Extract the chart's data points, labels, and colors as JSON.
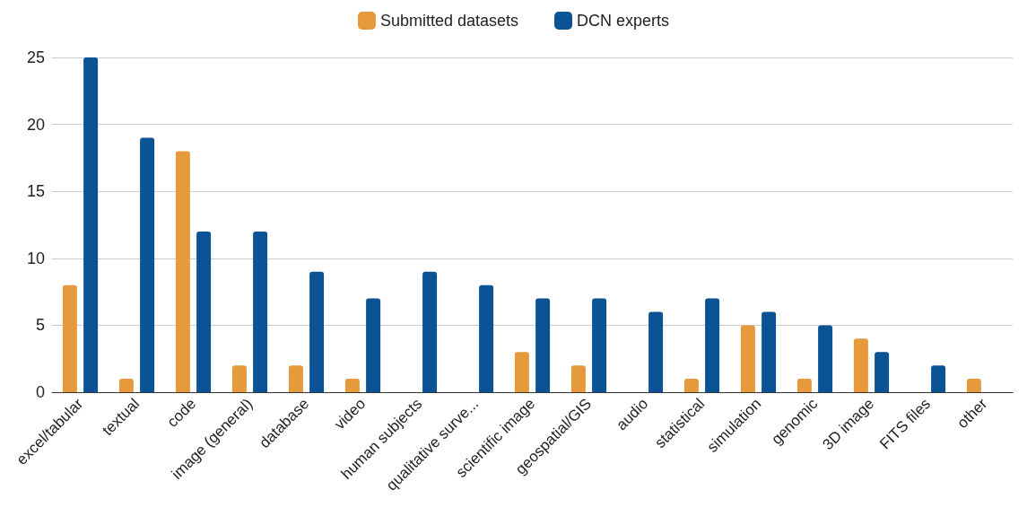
{
  "chart_data": {
    "type": "bar",
    "categories": [
      "excel/tabular",
      "textual",
      "code",
      "image (general)",
      "database",
      "video",
      "human subjects",
      "qualitative surve...",
      "scientific image",
      "geospatial/GIS",
      "audio",
      "statistical",
      "simulation",
      "genomic",
      "3D image",
      "FITS files",
      "other"
    ],
    "series": [
      {
        "name": "Submitted datasets",
        "color": "#e69a3c",
        "values": [
          8,
          1,
          18,
          2,
          2,
          1,
          0,
          0,
          3,
          2,
          0,
          1,
          5,
          1,
          4,
          0,
          1
        ]
      },
      {
        "name": "DCN experts",
        "color": "#0b5394",
        "values": [
          25,
          19,
          12,
          12,
          9,
          7,
          9,
          8,
          7,
          7,
          6,
          7,
          6,
          5,
          3,
          2,
          0
        ]
      }
    ],
    "ylim": [
      0,
      25
    ],
    "yticks": [
      0,
      5,
      10,
      15,
      20,
      25
    ],
    "grid": "y",
    "legend": "top"
  }
}
